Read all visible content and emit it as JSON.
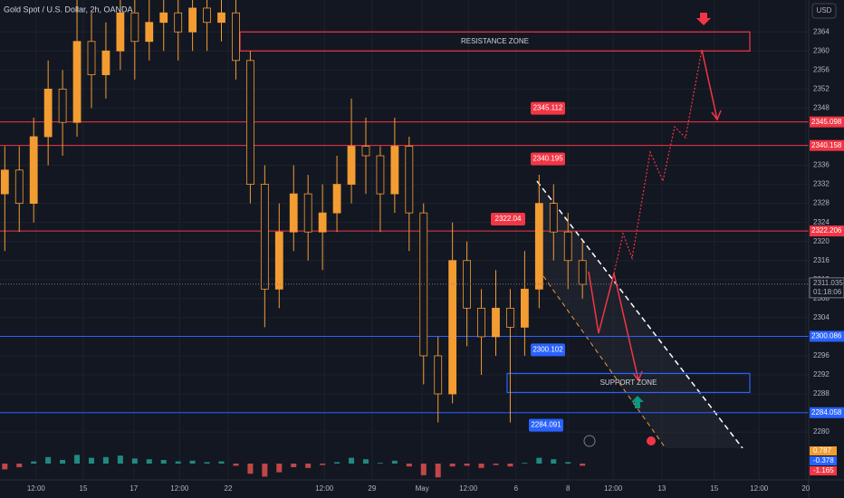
{
  "chart_data": {
    "type": "candlestick",
    "title": "Gold Spot / U.S. Dollar, 2h, OANDA",
    "currency": "USD",
    "x": [
      1,
      4,
      7,
      10,
      13,
      16,
      19,
      22,
      25,
      28,
      31,
      34,
      37,
      40,
      43,
      46,
      49,
      52,
      55,
      58,
      61,
      64,
      67,
      70,
      73,
      76,
      79,
      82,
      85,
      88,
      91,
      94,
      97,
      100,
      103,
      106,
      109,
      112,
      115,
      118,
      121
    ],
    "candles": [
      [
        2330,
        2340,
        2318,
        2335
      ],
      [
        2335,
        2340,
        2322,
        2328
      ],
      [
        2328,
        2346,
        2324,
        2342
      ],
      [
        2342,
        2358,
        2336,
        2352
      ],
      [
        2352,
        2356,
        2338,
        2345
      ],
      [
        2345,
        2372,
        2342,
        2362
      ],
      [
        2362,
        2368,
        2348,
        2355
      ],
      [
        2355,
        2366,
        2350,
        2360
      ],
      [
        2360,
        2372,
        2356,
        2368
      ],
      [
        2368,
        2372,
        2354,
        2362
      ],
      [
        2362,
        2372,
        2358,
        2366
      ],
      [
        2366,
        2372,
        2360,
        2368
      ],
      [
        2368,
        2372,
        2358,
        2364
      ],
      [
        2364,
        2372,
        2360,
        2369
      ],
      [
        2369,
        2372,
        2360,
        2366
      ],
      [
        2366,
        2372,
        2362,
        2368
      ],
      [
        2368,
        2372,
        2354,
        2358
      ],
      [
        2358,
        2360,
        2328,
        2332
      ],
      [
        2332,
        2336,
        2302,
        2310
      ],
      [
        2310,
        2328,
        2306,
        2322
      ],
      [
        2322,
        2336,
        2318,
        2330
      ],
      [
        2330,
        2334,
        2316,
        2322
      ],
      [
        2322,
        2332,
        2314,
        2326
      ],
      [
        2326,
        2338,
        2322,
        2332
      ],
      [
        2332,
        2350,
        2328,
        2340
      ],
      [
        2340,
        2346,
        2330,
        2338
      ],
      [
        2338,
        2340,
        2322,
        2330
      ],
      [
        2330,
        2346,
        2326,
        2340
      ],
      [
        2340,
        2342,
        2318,
        2326
      ],
      [
        2326,
        2328,
        2290,
        2296
      ],
      [
        2296,
        2300,
        2282,
        2288
      ],
      [
        2288,
        2324,
        2286,
        2316
      ],
      [
        2316,
        2320,
        2298,
        2306
      ],
      [
        2306,
        2310,
        2292,
        2300
      ],
      [
        2300,
        2314,
        2296,
        2306
      ],
      [
        2306,
        2310,
        2282,
        2302
      ],
      [
        2302,
        2318,
        2296,
        2310
      ],
      [
        2310,
        2334,
        2306,
        2328
      ],
      [
        2328,
        2332,
        2316,
        2322
      ],
      [
        2322,
        2326,
        2310,
        2316
      ],
      [
        2316,
        2320,
        2308,
        2311
      ]
    ],
    "up_color": "#f39c32",
    "down_color": "#131722",
    "xlim": [
      0,
      168
    ],
    "xticks": [
      {
        "value": 7.5,
        "label": "12:00"
      },
      {
        "value": 17.3,
        "label": "15"
      },
      {
        "value": 27.8,
        "label": "17"
      },
      {
        "value": 37.3,
        "label": "12:00"
      },
      {
        "value": 47.4,
        "label": "22"
      },
      {
        "value": 67.4,
        "label": "12:00"
      },
      {
        "value": 77.3,
        "label": "29"
      },
      {
        "value": 87.7,
        "label": "May"
      },
      {
        "value": 97.3,
        "label": "12:00"
      },
      {
        "value": 107.2,
        "label": "6"
      },
      {
        "value": 118,
        "label": "8"
      },
      {
        "value": 127.4,
        "label": "12:00"
      },
      {
        "value": 137.5,
        "label": "13"
      },
      {
        "value": 148.4,
        "label": "15"
      },
      {
        "value": 157.7,
        "label": "12:00"
      },
      {
        "value": 167.4,
        "label": "20"
      }
    ],
    "ylim": [
      2276.6,
      2370.7
    ],
    "yticks": [
      2364,
      2360,
      2356,
      2352,
      2348,
      2336,
      2332,
      2328,
      2324,
      2320,
      2316,
      2312,
      2308,
      2304,
      2296,
      2292,
      2288,
      2280
    ],
    "levels": [
      {
        "value": 2345.098,
        "color": "#f23645"
      },
      {
        "value": 2340.158,
        "color": "#f23645"
      },
      {
        "value": 2322.206,
        "color": "#f23645"
      },
      {
        "value": 2300.086,
        "color": "#2962ff"
      },
      {
        "value": 2284.058,
        "color": "#2962ff"
      }
    ],
    "callouts": [
      {
        "value": 2345.112,
        "color": "#f23645"
      },
      {
        "value": 2340.195,
        "color": "#f23645"
      },
      {
        "value": 2322.04,
        "color": "#f23645"
      },
      {
        "value": 2300.102,
        "color": "#2962ff"
      },
      {
        "value": 2284.091,
        "color": "#2962ff"
      }
    ],
    "zones": [
      {
        "label": "RESISTANCE ZONE",
        "low": 2360,
        "high": 2364,
        "color": "#f23645"
      },
      {
        "label": "SUPPORT ZONE",
        "low": 2288.3,
        "high": 2292.3,
        "color": "#2962ff"
      }
    ],
    "last_price": 2311.035,
    "countdown": "01:18:06",
    "macd": {
      "histogram": [
        -0.8,
        -0.5,
        0.3,
        0.9,
        0.5,
        1.2,
        0.8,
        0.9,
        1.1,
        0.7,
        0.6,
        0.5,
        0.3,
        0.4,
        0.2,
        0.3,
        -0.3,
        -1.4,
        -1.8,
        -1.2,
        -0.5,
        -0.6,
        -0.2,
        0.2,
        0.8,
        0.6,
        0.1,
        0.4,
        -0.4,
        -1.6,
        -1.9,
        -0.4,
        -0.3,
        -0.6,
        -0.2,
        -0.4,
        0.1,
        0.8,
        0.6,
        0.2,
        -0.3
      ],
      "labels": [
        {
          "value": 0.787,
          "color": "#f39c32"
        },
        {
          "value": -0.378,
          "color": "#2962ff"
        },
        {
          "value": -1.165,
          "color": "#f23645"
        }
      ]
    }
  }
}
